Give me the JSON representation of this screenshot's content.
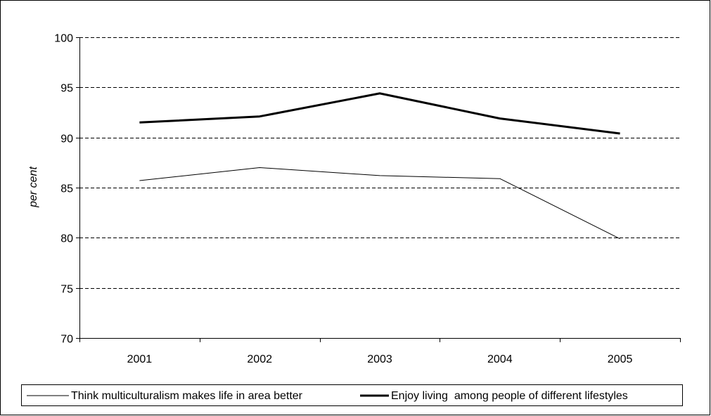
{
  "chart_data": {
    "type": "line",
    "title": "",
    "xlabel": "",
    "ylabel": "per cent",
    "categories": [
      "2001",
      "2002",
      "2003",
      "2004",
      "2005"
    ],
    "ylim": [
      70,
      100
    ],
    "yticks": [
      70,
      75,
      80,
      85,
      90,
      95,
      100
    ],
    "ytick_labels": [
      "70",
      "75",
      "80",
      "85",
      "90",
      "95",
      "100"
    ],
    "grid": "dashed horizontal",
    "legend_position": "bottom",
    "series": [
      {
        "name": "Think multiculturalism makes life in area better",
        "values": [
          85.7,
          87.0,
          86.2,
          85.9,
          79.9
        ],
        "color": "#000000",
        "style": "thin"
      },
      {
        "name": "Enjoy living  among people of different lifestyles",
        "values": [
          91.5,
          92.1,
          94.4,
          91.9,
          90.4
        ],
        "color": "#000000",
        "style": "thick"
      }
    ]
  }
}
